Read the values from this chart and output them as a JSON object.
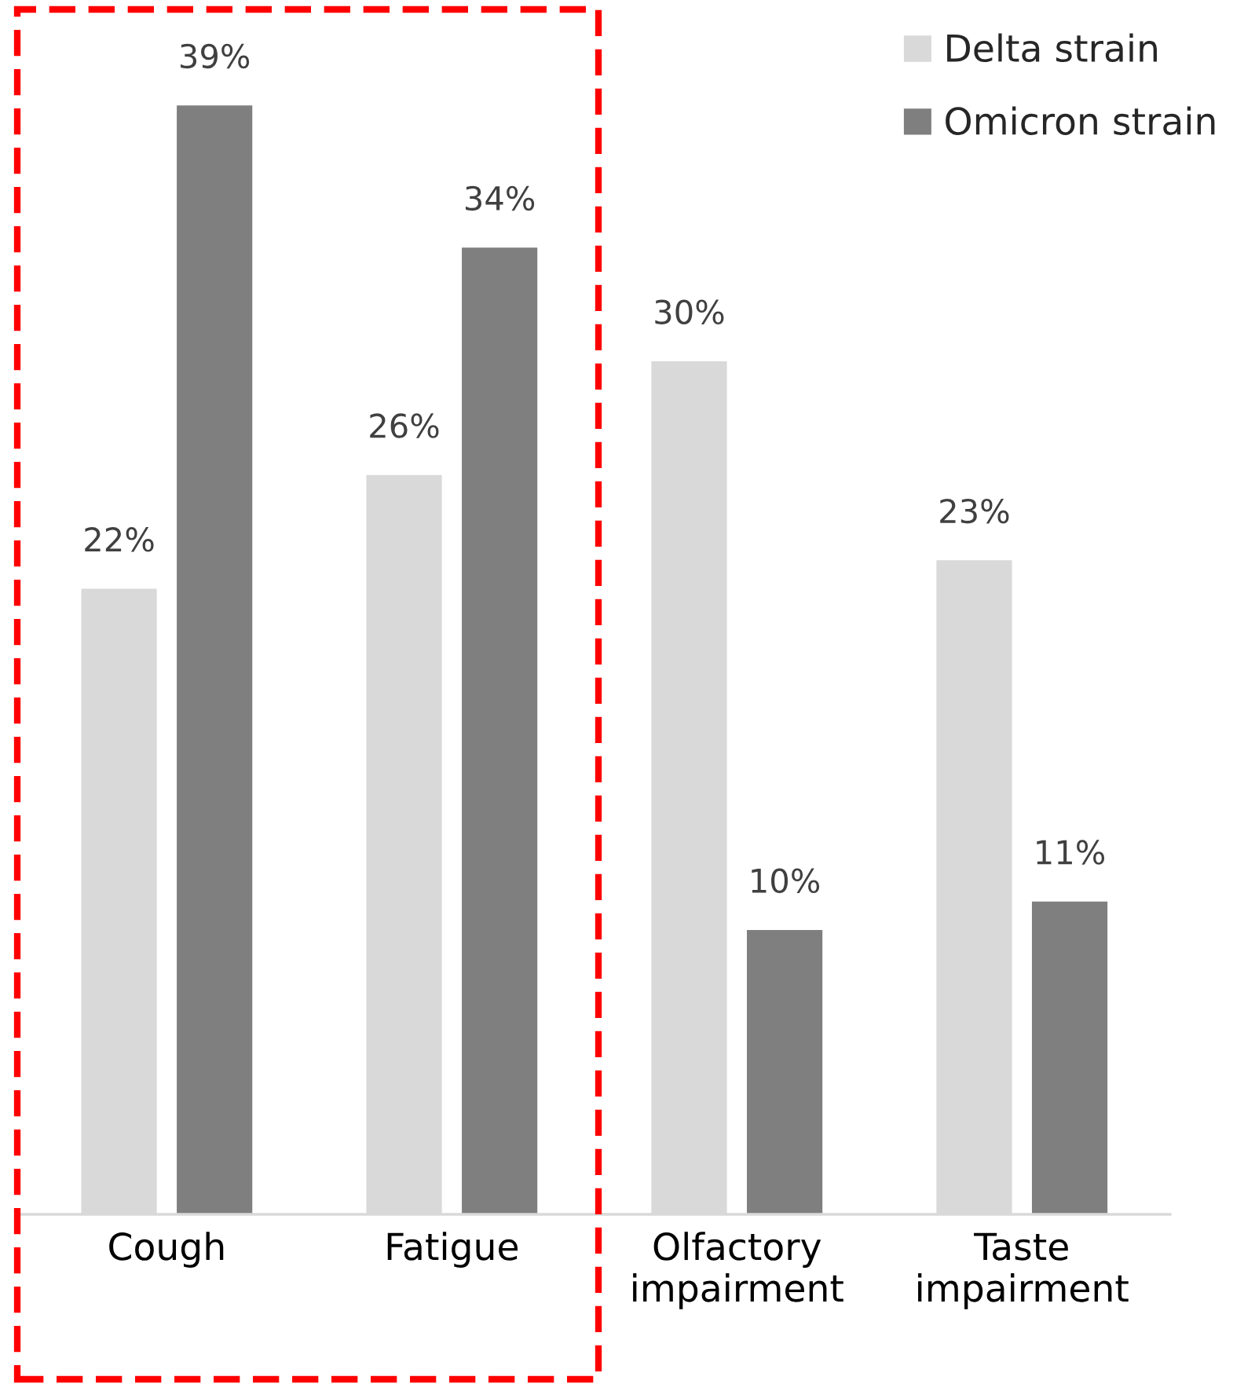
{
  "chart_data": {
    "type": "bar",
    "categories": [
      "Cough",
      "Fatigue",
      "Olfactory\nimpairment",
      "Taste\nimpairment"
    ],
    "series": [
      {
        "name": "Delta strain",
        "color": "#d9d9d9",
        "values": [
          22,
          26,
          30,
          23
        ],
        "value_labels": [
          "22%",
          "26%",
          "30%",
          "23%"
        ]
      },
      {
        "name": "Omicron strain",
        "color": "#7f7f7f",
        "values": [
          39,
          34,
          10,
          11
        ],
        "value_labels": [
          "39%",
          "34%",
          "10%",
          "11%"
        ]
      }
    ],
    "legend": "top right",
    "grid": false,
    "tick_labels": "x"
  }
}
